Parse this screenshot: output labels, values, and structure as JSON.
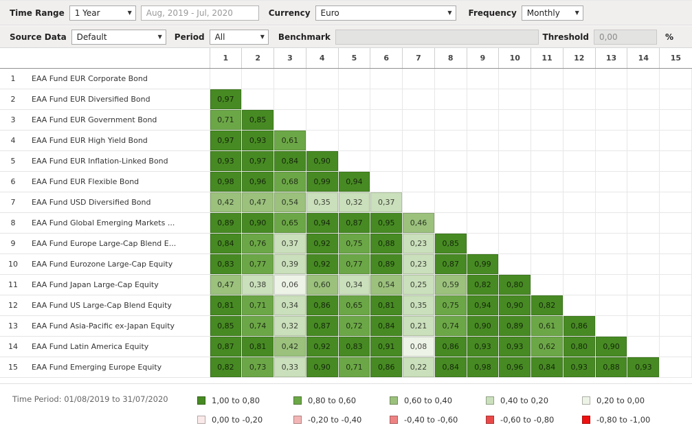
{
  "toolbar": {
    "time_range": {
      "label": "Time Range",
      "value": "1 Year"
    },
    "date_range": {
      "value": "Aug, 2019 - Jul, 2020"
    },
    "currency": {
      "label": "Currency",
      "value": "Euro"
    },
    "frequency": {
      "label": "Frequency",
      "value": "Monthly"
    },
    "source_data": {
      "label": "Source Data",
      "value": "Default"
    },
    "period": {
      "label": "Period",
      "value": "All"
    },
    "benchmark": {
      "label": "Benchmark",
      "value": ""
    },
    "threshold": {
      "label": "Threshold",
      "value": "0,00",
      "unit": "%"
    }
  },
  "matrix": {
    "column_headers": [
      "1",
      "2",
      "3",
      "4",
      "5",
      "6",
      "7",
      "8",
      "9",
      "10",
      "11",
      "12",
      "13",
      "14",
      "15"
    ],
    "rows": [
      {
        "num": "1",
        "name": "EAA Fund EUR Corporate Bond",
        "values": []
      },
      {
        "num": "2",
        "name": "EAA Fund EUR Diversified Bond",
        "values": [
          "0,97"
        ]
      },
      {
        "num": "3",
        "name": "EAA Fund EUR Government Bond",
        "values": [
          "0,71",
          "0,85"
        ]
      },
      {
        "num": "4",
        "name": "EAA Fund EUR High Yield Bond",
        "values": [
          "0,97",
          "0,93",
          "0,61"
        ]
      },
      {
        "num": "5",
        "name": "EAA Fund EUR Inflation-Linked Bond",
        "values": [
          "0,93",
          "0,97",
          "0,84",
          "0,90"
        ]
      },
      {
        "num": "6",
        "name": "EAA Fund EUR Flexible Bond",
        "values": [
          "0,98",
          "0,96",
          "0,68",
          "0,99",
          "0,94"
        ]
      },
      {
        "num": "7",
        "name": "EAA Fund USD Diversified Bond",
        "values": [
          "0,42",
          "0,47",
          "0,54",
          "0,35",
          "0,32",
          "0,37"
        ]
      },
      {
        "num": "8",
        "name": "EAA Fund Global Emerging Markets ...",
        "values": [
          "0,89",
          "0,90",
          "0,65",
          "0,94",
          "0,87",
          "0,95",
          "0,46"
        ]
      },
      {
        "num": "9",
        "name": "EAA Fund Europe Large-Cap Blend E...",
        "values": [
          "0,84",
          "0,76",
          "0,37",
          "0,92",
          "0,75",
          "0,88",
          "0,23",
          "0,85"
        ]
      },
      {
        "num": "10",
        "name": "EAA Fund Eurozone Large-Cap Equity",
        "values": [
          "0,83",
          "0,77",
          "0,39",
          "0,92",
          "0,77",
          "0,89",
          "0,23",
          "0,87",
          "0,99"
        ]
      },
      {
        "num": "11",
        "name": "EAA Fund Japan Large-Cap Equity",
        "values": [
          "0,47",
          "0,38",
          "0,06",
          "0,60",
          "0,34",
          "0,54",
          "0,25",
          "0,59",
          "0,82",
          "0,80"
        ]
      },
      {
        "num": "12",
        "name": "EAA Fund US Large-Cap Blend Equity",
        "values": [
          "0,81",
          "0,71",
          "0,34",
          "0,86",
          "0,65",
          "0,81",
          "0,35",
          "0,75",
          "0,94",
          "0,90",
          "0,82"
        ]
      },
      {
        "num": "13",
        "name": "EAA Fund Asia-Pacific ex-Japan Equity",
        "values": [
          "0,85",
          "0,74",
          "0,32",
          "0,87",
          "0,72",
          "0,84",
          "0,21",
          "0,74",
          "0,90",
          "0,89",
          "0,61",
          "0,86"
        ]
      },
      {
        "num": "14",
        "name": "EAA Fund Latin America Equity",
        "values": [
          "0,87",
          "0,81",
          "0,42",
          "0,92",
          "0,83",
          "0,91",
          "0,08",
          "0,86",
          "0,93",
          "0,93",
          "0,62",
          "0,80",
          "0,90"
        ]
      },
      {
        "num": "15",
        "name": "EAA Fund Emerging Europe Equity",
        "values": [
          "0,82",
          "0,73",
          "0,33",
          "0,90",
          "0,71",
          "0,86",
          "0,22",
          "0,84",
          "0,98",
          "0,96",
          "0,84",
          "0,93",
          "0,88",
          "0,93"
        ]
      }
    ]
  },
  "footer": {
    "time_period": "Time Period: 01/08/2019 to 31/07/2020",
    "legend": [
      {
        "label": "1,00 to 0,80",
        "color": "#478a23"
      },
      {
        "label": "0,80 to 0,60",
        "color": "#6ca747"
      },
      {
        "label": "0,60 to 0,40",
        "color": "#9bc17d"
      },
      {
        "label": "0,40 to 0,20",
        "color": "#cadfbb"
      },
      {
        "label": "0,20 to 0,00",
        "color": "#edf3e6"
      },
      {
        "label": "0,00 to -0,20",
        "color": "#fae9e9"
      },
      {
        "label": "-0,20 to -0,40",
        "color": "#f2b6b6"
      },
      {
        "label": "-0,40 to -0,60",
        "color": "#ee8383"
      },
      {
        "label": "-0,60 to -0,80",
        "color": "#e94848"
      },
      {
        "label": "-0,80 to -1,00",
        "color": "#ee1111"
      }
    ]
  }
}
